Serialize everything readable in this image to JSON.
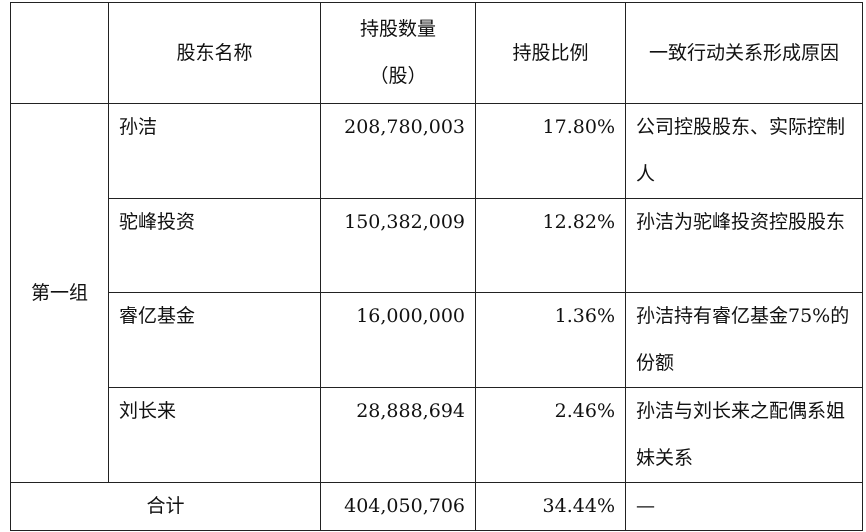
{
  "headers": {
    "group": "",
    "name": "股东名称",
    "shares": "持股数量（股）",
    "ratio": "持股比例",
    "reason": "一致行动关系形成原因"
  },
  "group_label": "第一组",
  "rows": [
    {
      "name": "孙洁",
      "shares": "208,780,003",
      "ratio": "17.80%",
      "reason": "公司控股股东、实际控制人"
    },
    {
      "name": "驼峰投资",
      "shares": "150,382,009",
      "ratio": "12.82%",
      "reason": "孙洁为驼峰投资控股股东"
    },
    {
      "name": "睿亿基金",
      "shares": "16,000,000",
      "ratio": "1.36%",
      "reason": "孙洁持有睿亿基金75%的份额"
    },
    {
      "name": "刘长来",
      "shares": "28,888,694",
      "ratio": "2.46%",
      "reason": "孙洁与刘长来之配偶系姐妹关系"
    }
  ],
  "total": {
    "label": "合计",
    "shares": "404,050,706",
    "ratio": "34.44%",
    "reason": "—"
  }
}
